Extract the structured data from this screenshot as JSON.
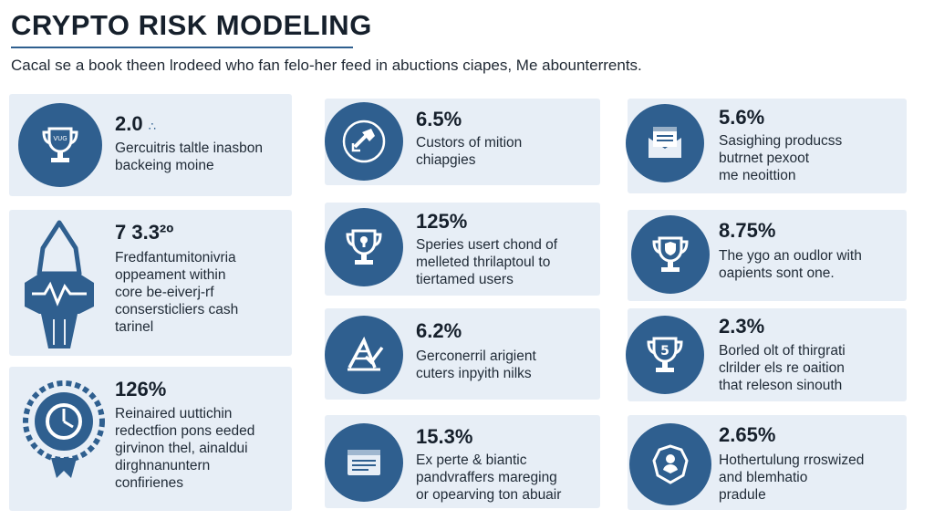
{
  "header": {
    "title": "CRYPTO RISK MODELING",
    "subtitle": "Cacal se a book theen lrodeed who fan felo-her feed in abuctions ciapes, Me abounterrents."
  },
  "colors": {
    "accent": "#2f5f8f",
    "card": "#e7eef6",
    "text": "#16202c"
  },
  "left": [
    {
      "icon": "trophy-icon",
      "badge": "VUG",
      "value": "2.0",
      "mark": "∴",
      "lines": [
        "Gercuitris taltle inasbon",
        "backeing moine"
      ]
    },
    {
      "icon": "robot-bust-icon",
      "value": "7 3.3²º",
      "lines": [
        "Fredfantumitonivria",
        "oppeament within",
        "core be-eiverj-rf",
        "consersticliers cash",
        "tarinel"
      ]
    },
    {
      "icon": "clock-ring-icon",
      "value": "126%",
      "lines": [
        "Reinaired uuttichin",
        "redectfion pons eeded",
        "girvinon thel, ainaldui",
        "dirghnanuntern",
        "confirienes"
      ]
    }
  ],
  "middle": [
    {
      "icon": "hammer-icon",
      "value": "6.5%",
      "lines": [
        "Custors of mition",
        "chiapgies"
      ]
    },
    {
      "icon": "trophy-lock-icon",
      "value": "125%",
      "lines": [
        "Speries usert chond of",
        "melleted thrilaptoul to",
        "tiertamed users"
      ]
    },
    {
      "icon": "ladder-check-icon",
      "value": "6.2%",
      "lines": [
        "Gerconerril arigient",
        "cuters inpyith nilks"
      ]
    },
    {
      "icon": "document-window-icon",
      "value": "15.3%",
      "lines": [
        "Ex perte & biantic",
        "pandvraffers mareging",
        "or opearving ton abuair"
      ]
    }
  ],
  "right": [
    {
      "icon": "envelope-document-icon",
      "value": "5.6%",
      "lines": [
        "Sasighing producss",
        "butrnet pexoot",
        "me neoittion"
      ]
    },
    {
      "icon": "trophy-shield-icon",
      "value": "8.75%",
      "lines": [
        "The ygo an oudlor with",
        "oapients sont one."
      ]
    },
    {
      "icon": "trophy-five-icon",
      "badge": "5",
      "value": "2.3%",
      "lines": [
        "Borled olt of thirgrati",
        "clrilder els re oaition",
        "that releson sinouth"
      ]
    },
    {
      "icon": "shield-face-icon",
      "value": "2.65%",
      "lines": [
        "Hothertulung rroswized",
        "and blemhatio",
        "pradule"
      ]
    }
  ]
}
